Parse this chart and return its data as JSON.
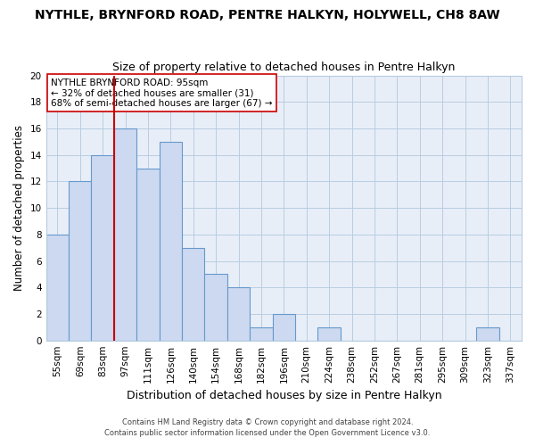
{
  "title": "NYTHLE, BRYNFORD ROAD, PENTRE HALKYN, HOLYWELL, CH8 8AW",
  "subtitle": "Size of property relative to detached houses in Pentre Halkyn",
  "xlabel": "Distribution of detached houses by size in Pentre Halkyn",
  "ylabel": "Number of detached properties",
  "categories": [
    "55sqm",
    "69sqm",
    "83sqm",
    "97sqm",
    "111sqm",
    "126sqm",
    "140sqm",
    "154sqm",
    "168sqm",
    "182sqm",
    "196sqm",
    "210sqm",
    "224sqm",
    "238sqm",
    "252sqm",
    "267sqm",
    "281sqm",
    "295sqm",
    "309sqm",
    "323sqm",
    "337sqm"
  ],
  "values": [
    8,
    12,
    14,
    16,
    13,
    15,
    7,
    5,
    4,
    1,
    2,
    0,
    1,
    0,
    0,
    0,
    0,
    0,
    0,
    1,
    0
  ],
  "bar_color": "#ccd9f0",
  "bar_edge_color": "#6699cc",
  "vline_x_idx": 2.5,
  "annotation_text_line1": "NYTHLE BRYNFORD ROAD: 95sqm",
  "annotation_text_line2": "← 32% of detached houses are smaller (31)",
  "annotation_text_line3": "68% of semi-detached houses are larger (67) →",
  "vline_color": "#cc0000",
  "annotation_box_edge": "#cc0000",
  "ylim": [
    0,
    20
  ],
  "yticks": [
    0,
    2,
    4,
    6,
    8,
    10,
    12,
    14,
    16,
    18,
    20
  ],
  "footnote1": "Contains HM Land Registry data © Crown copyright and database right 2024.",
  "footnote2": "Contains public sector information licensed under the Open Government Licence v3.0.",
  "title_fontsize": 10,
  "subtitle_fontsize": 9,
  "xlabel_fontsize": 9,
  "ylabel_fontsize": 8.5,
  "annotation_fontsize": 7.5,
  "tick_fontsize": 7.5
}
